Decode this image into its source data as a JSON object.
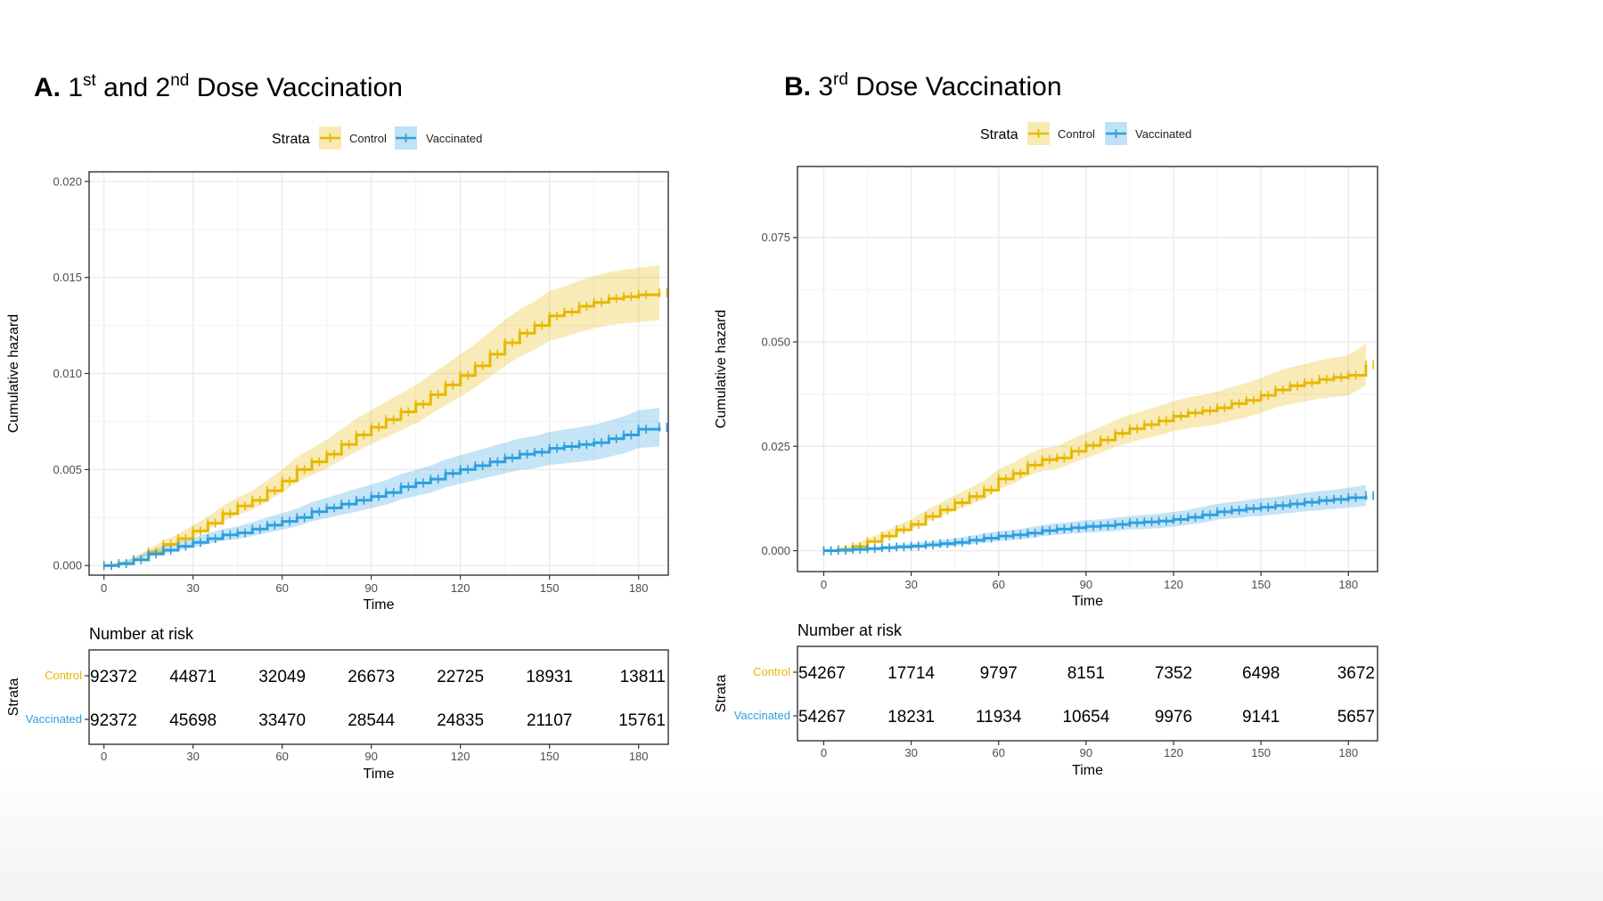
{
  "colors": {
    "control": "#E7B800",
    "vaccinated": "#2E9FDF",
    "grid": "#EBEBEB",
    "tick_text": "#4D4D4D"
  },
  "panels": [
    {
      "id": "A",
      "title_letter": "A.",
      "title_parts": [
        "1",
        "st",
        " and 2",
        "nd",
        " Dose Vaccination"
      ],
      "legend_title": "Strata",
      "risk_title": "Number at risk",
      "strata_label": "Strata"
    },
    {
      "id": "B",
      "title_letter": "B.",
      "title_parts": [
        "3",
        "rd",
        " Dose Vaccination"
      ],
      "legend_title": "Strata",
      "risk_title": "Number at risk",
      "strata_label": "Strata"
    }
  ],
  "chart_data": [
    {
      "type": "line",
      "panel": "A",
      "xlabel": "Time",
      "ylabel": "Cumulative hazard",
      "xlim": [
        -5,
        190
      ],
      "ylim": [
        -0.0005,
        0.0205
      ],
      "xticks": [
        0,
        30,
        60,
        90,
        120,
        150,
        180
      ],
      "yticks": [
        "0.000",
        "0.005",
        "0.010",
        "0.015",
        "0.020"
      ],
      "grid": true,
      "legend_position": "top",
      "confidence_band": true,
      "series": [
        {
          "name": "Control",
          "color": "#E7B800",
          "x": [
            0,
            5,
            10,
            15,
            20,
            25,
            30,
            35,
            40,
            45,
            50,
            55,
            60,
            65,
            70,
            75,
            80,
            85,
            90,
            95,
            100,
            105,
            110,
            115,
            120,
            125,
            130,
            135,
            140,
            145,
            150,
            155,
            160,
            165,
            170,
            175,
            180,
            187
          ],
          "y": [
            0,
            0.0001,
            0.0003,
            0.0007,
            0.0011,
            0.0014,
            0.0018,
            0.0022,
            0.0027,
            0.0031,
            0.0034,
            0.0039,
            0.0044,
            0.005,
            0.0054,
            0.0058,
            0.0063,
            0.0068,
            0.0072,
            0.0076,
            0.008,
            0.0084,
            0.0089,
            0.0094,
            0.0099,
            0.0104,
            0.011,
            0.0116,
            0.0121,
            0.0125,
            0.013,
            0.0132,
            0.0135,
            0.0137,
            0.0139,
            0.014,
            0.0141,
            0.0142
          ],
          "band_halfwidth": [
            0,
            5e-05,
            0.0001,
            0.00015,
            0.0002,
            0.00025,
            0.0003,
            0.00035,
            0.0004,
            0.00045,
            0.0005,
            0.00055,
            0.0006,
            0.00065,
            0.0007,
            0.00075,
            0.0008,
            0.00085,
            0.0009,
            0.00093,
            0.00096,
            0.001,
            0.00103,
            0.00106,
            0.0011,
            0.00113,
            0.00116,
            0.0012,
            0.00123,
            0.00126,
            0.0013,
            0.00132,
            0.00134,
            0.00136,
            0.00138,
            0.0014,
            0.00141,
            0.00142
          ]
        },
        {
          "name": "Vaccinated",
          "color": "#2E9FDF",
          "x": [
            0,
            5,
            10,
            15,
            20,
            25,
            30,
            35,
            40,
            45,
            50,
            55,
            60,
            65,
            70,
            75,
            80,
            85,
            90,
            95,
            100,
            105,
            110,
            115,
            120,
            125,
            130,
            135,
            140,
            145,
            150,
            155,
            160,
            165,
            170,
            175,
            180,
            187
          ],
          "y": [
            0,
            0.0001,
            0.0003,
            0.0006,
            0.0008,
            0.001,
            0.0012,
            0.0014,
            0.0016,
            0.0017,
            0.0019,
            0.0021,
            0.0023,
            0.0025,
            0.0028,
            0.003,
            0.0032,
            0.0034,
            0.0036,
            0.0038,
            0.0041,
            0.0043,
            0.0045,
            0.0048,
            0.005,
            0.0052,
            0.0054,
            0.0056,
            0.0058,
            0.0059,
            0.0061,
            0.0062,
            0.0063,
            0.0064,
            0.0066,
            0.0068,
            0.0071,
            0.0072
          ],
          "band_halfwidth": [
            0,
            5e-05,
            0.0001,
            0.00015,
            0.0002,
            0.00022,
            0.00025,
            0.00028,
            0.0003,
            0.00033,
            0.00036,
            0.0004,
            0.00043,
            0.00046,
            0.0005,
            0.00053,
            0.00056,
            0.0006,
            0.00062,
            0.00064,
            0.00066,
            0.00068,
            0.0007,
            0.00072,
            0.00074,
            0.00076,
            0.00078,
            0.0008,
            0.00082,
            0.00084,
            0.00086,
            0.00088,
            0.0009,
            0.00092,
            0.00094,
            0.00096,
            0.00098,
            0.001
          ]
        }
      ],
      "risk_table": {
        "xlabel": "Time",
        "times": [
          0,
          30,
          60,
          90,
          120,
          150,
          180
        ],
        "rows": [
          {
            "name": "Control",
            "color": "#E7B800",
            "values": [
              "92372",
              "44871",
              "32049",
              "26673",
              "22725",
              "18931",
              "13811"
            ]
          },
          {
            "name": "Vaccinated",
            "color": "#2E9FDF",
            "values": [
              "92372",
              "45698",
              "33470",
              "28544",
              "24835",
              "21107",
              "15761"
            ]
          }
        ]
      }
    },
    {
      "type": "line",
      "panel": "B",
      "xlabel": "Time",
      "ylabel": "Cumulative hazard",
      "xlim": [
        -9,
        190
      ],
      "ylim": [
        -0.005,
        0.092
      ],
      "xticks": [
        0,
        30,
        60,
        90,
        120,
        150,
        180
      ],
      "yticks": [
        "0.000",
        "0.025",
        "0.050",
        "0.075"
      ],
      "grid": true,
      "legend_position": "top",
      "confidence_band": true,
      "series": [
        {
          "name": "Control",
          "color": "#E7B800",
          "x": [
            0,
            5,
            10,
            15,
            20,
            25,
            30,
            35,
            40,
            45,
            50,
            55,
            60,
            65,
            70,
            75,
            80,
            85,
            90,
            95,
            100,
            105,
            110,
            115,
            120,
            125,
            130,
            135,
            140,
            145,
            150,
            155,
            160,
            165,
            170,
            175,
            180,
            186
          ],
          "y": [
            0,
            0.0003,
            0.001,
            0.0022,
            0.0035,
            0.005,
            0.0063,
            0.0082,
            0.0098,
            0.0115,
            0.013,
            0.0145,
            0.0172,
            0.0185,
            0.0205,
            0.0218,
            0.0222,
            0.0238,
            0.0252,
            0.0265,
            0.0281,
            0.0292,
            0.0302,
            0.0311,
            0.0322,
            0.033,
            0.0335,
            0.0342,
            0.0352,
            0.036,
            0.0372,
            0.0385,
            0.0395,
            0.0402,
            0.041,
            0.0415,
            0.042,
            0.0445
          ],
          "band_halfwidth": [
            0,
            0.0002,
            0.0004,
            0.0006,
            0.0008,
            0.001,
            0.0012,
            0.0014,
            0.0016,
            0.0018,
            0.002,
            0.0022,
            0.0024,
            0.0025,
            0.0026,
            0.0027,
            0.0028,
            0.0029,
            0.003,
            0.0031,
            0.0032,
            0.0033,
            0.0034,
            0.0035,
            0.0036,
            0.0037,
            0.0038,
            0.0039,
            0.004,
            0.0041,
            0.0042,
            0.0043,
            0.0044,
            0.0045,
            0.0046,
            0.0047,
            0.0048,
            0.005
          ]
        },
        {
          "name": "Vaccinated",
          "color": "#2E9FDF",
          "x": [
            0,
            5,
            10,
            15,
            20,
            25,
            30,
            35,
            40,
            45,
            50,
            55,
            60,
            65,
            70,
            75,
            80,
            85,
            90,
            95,
            100,
            105,
            110,
            115,
            120,
            125,
            130,
            135,
            140,
            145,
            150,
            155,
            160,
            165,
            170,
            175,
            180,
            186
          ],
          "y": [
            0,
            0.0001,
            0.0003,
            0.0005,
            0.0007,
            0.0009,
            0.0011,
            0.0014,
            0.0017,
            0.002,
            0.0025,
            0.003,
            0.0035,
            0.0038,
            0.0042,
            0.0048,
            0.0052,
            0.0055,
            0.0058,
            0.006,
            0.0063,
            0.0067,
            0.0069,
            0.0071,
            0.0075,
            0.008,
            0.0086,
            0.0093,
            0.0097,
            0.0101,
            0.0104,
            0.0108,
            0.0112,
            0.0116,
            0.012,
            0.0123,
            0.0127,
            0.0132
          ],
          "band_halfwidth": [
            0,
            0.0001,
            0.0002,
            0.0003,
            0.0004,
            0.0005,
            0.0006,
            0.0007,
            0.0008,
            0.0009,
            0.001,
            0.0011,
            0.0012,
            0.0012,
            0.0013,
            0.0013,
            0.0014,
            0.0014,
            0.0015,
            0.0015,
            0.0016,
            0.0016,
            0.0017,
            0.0017,
            0.0018,
            0.0018,
            0.0019,
            0.0019,
            0.002,
            0.002,
            0.0021,
            0.0021,
            0.0022,
            0.0022,
            0.0023,
            0.0023,
            0.0024,
            0.0025
          ]
        }
      ],
      "risk_table": {
        "xlabel": "Time",
        "times": [
          0,
          30,
          60,
          90,
          120,
          150,
          180
        ],
        "rows": [
          {
            "name": "Control",
            "color": "#E7B800",
            "values": [
              "54267",
              "17714",
              "9797",
              "8151",
              "7352",
              "6498",
              "3672"
            ]
          },
          {
            "name": "Vaccinated",
            "color": "#2E9FDF",
            "values": [
              "54267",
              "18231",
              "11934",
              "10654",
              "9976",
              "9141",
              "5657"
            ]
          }
        ]
      }
    }
  ]
}
